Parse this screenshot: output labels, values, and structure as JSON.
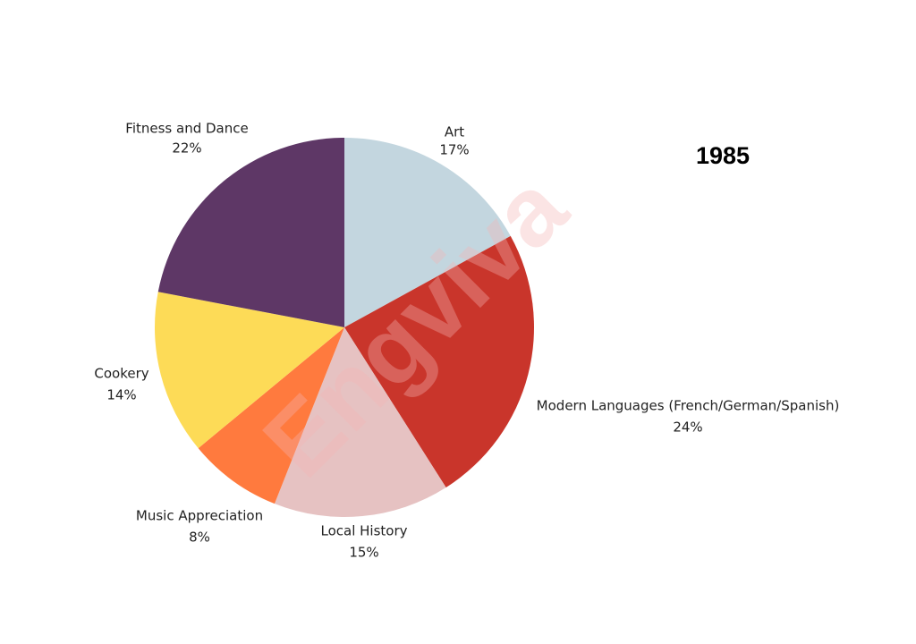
{
  "chart_data": {
    "type": "pie",
    "title": "1985",
    "watermark": "Engviva",
    "categories": [
      "Art",
      "Modern Languages (French/German/Spanish)",
      "Local History",
      "Music Appreciation",
      "Cookery",
      "Fitness and Dance"
    ],
    "values": [
      17,
      24,
      15,
      8,
      14,
      22
    ],
    "value_labels": [
      "17%",
      "24%",
      "15%",
      "8%",
      "14%",
      "22%"
    ],
    "colors": [
      "#c3d6df",
      "#c9352b",
      "#e6c2c2",
      "#ff7a3e",
      "#fddb57",
      "#5e3766"
    ]
  }
}
